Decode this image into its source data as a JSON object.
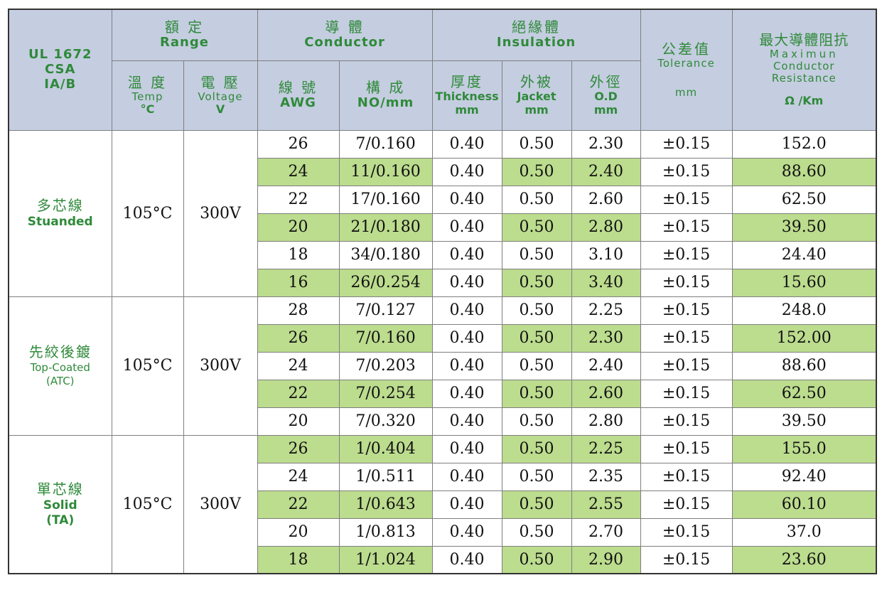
{
  "header": {
    "standard": [
      "UL 1672",
      "CSA",
      "IA/B"
    ],
    "range": {
      "cn": "額 定",
      "en": "Range"
    },
    "conductor": {
      "cn": "導 體",
      "en": "Conductor"
    },
    "insulation": {
      "cn": "絕緣體",
      "en": "Insulation"
    },
    "tolerance": {
      "cn": "公差值",
      "en": "Tolerance",
      "unit": "mm"
    },
    "resistance": {
      "cn": "最大導體阻抗",
      "en1": "Maximun",
      "en2": "Conductor",
      "en3": "Resistance",
      "unit": "Ω /Km"
    },
    "temp": {
      "cn": "溫 度",
      "en": "Temp",
      "unit": "°C"
    },
    "voltage": {
      "cn": "電 壓",
      "en": "Voltage",
      "unit": "V"
    },
    "awg": {
      "cn": "線 號",
      "en": "AWG"
    },
    "construction": {
      "cn": "構 成",
      "en": "NO/mm"
    },
    "thickness": {
      "cn": "厚度",
      "en": "Thickness",
      "unit": "mm"
    },
    "jacket": {
      "cn": "外被",
      "en": "Jacket",
      "unit": "mm"
    },
    "od": {
      "cn": "外徑",
      "en": "O.D",
      "unit": "mm"
    }
  },
  "groups": [
    {
      "cn": "多芯線",
      "en": "Stuanded",
      "en2": "",
      "temp": "105°C",
      "voltage": "300V",
      "rows": [
        {
          "awg": "26",
          "no": "7/0.160",
          "thick": "0.40",
          "jacket": "0.50",
          "od": "2.30",
          "tol": "±0.15",
          "res": "152.0",
          "green": false
        },
        {
          "awg": "24",
          "no": "11/0.160",
          "thick": "0.40",
          "jacket": "0.50",
          "od": "2.40",
          "tol": "±0.15",
          "res": "88.60",
          "green": true
        },
        {
          "awg": "22",
          "no": "17/0.160",
          "thick": "0.40",
          "jacket": "0.50",
          "od": "2.60",
          "tol": "±0.15",
          "res": "62.50",
          "green": false
        },
        {
          "awg": "20",
          "no": "21/0.180",
          "thick": "0.40",
          "jacket": "0.50",
          "od": "2.80",
          "tol": "±0.15",
          "res": "39.50",
          "green": true
        },
        {
          "awg": "18",
          "no": "34/0.180",
          "thick": "0.40",
          "jacket": "0.50",
          "od": "3.10",
          "tol": "±0.15",
          "res": "24.40",
          "green": false
        },
        {
          "awg": "16",
          "no": "26/0.254",
          "thick": "0.40",
          "jacket": "0.50",
          "od": "3.40",
          "tol": "±0.15",
          "res": "15.60",
          "green": true
        }
      ]
    },
    {
      "cn": "先絞後鍍",
      "en": "Top-Coated",
      "en2": "(ATC)",
      "temp": "105°C",
      "voltage": "300V",
      "rows": [
        {
          "awg": "28",
          "no": "7/0.127",
          "thick": "0.40",
          "jacket": "0.50",
          "od": "2.25",
          "tol": "±0.15",
          "res": "248.0",
          "green": false
        },
        {
          "awg": "26",
          "no": "7/0.160",
          "thick": "0.40",
          "jacket": "0.50",
          "od": "2.30",
          "tol": "±0.15",
          "res": "152.00",
          "green": true
        },
        {
          "awg": "24",
          "no": "7/0.203",
          "thick": "0.40",
          "jacket": "0.50",
          "od": "2.40",
          "tol": "±0.15",
          "res": "88.60",
          "green": false
        },
        {
          "awg": "22",
          "no": "7/0.254",
          "thick": "0.40",
          "jacket": "0.50",
          "od": "2.60",
          "tol": "±0.15",
          "res": "62.50",
          "green": true
        },
        {
          "awg": "20",
          "no": "7/0.320",
          "thick": "0.40",
          "jacket": "0.50",
          "od": "2.80",
          "tol": "±0.15",
          "res": "39.50",
          "green": false
        }
      ]
    },
    {
      "cn": "單芯線",
      "en": "Solid",
      "en2": "(TA)",
      "temp": "105°C",
      "voltage": "300V",
      "rows": [
        {
          "awg": "26",
          "no": "1/0.404",
          "thick": "0.40",
          "jacket": "0.50",
          "od": "2.25",
          "tol": "±0.15",
          "res": "155.0",
          "green": true
        },
        {
          "awg": "24",
          "no": "1/0.511",
          "thick": "0.40",
          "jacket": "0.50",
          "od": "2.35",
          "tol": "±0.15",
          "res": "92.40",
          "green": false
        },
        {
          "awg": "22",
          "no": "1/0.643",
          "thick": "0.40",
          "jacket": "0.50",
          "od": "2.55",
          "tol": "±0.15",
          "res": "60.10",
          "green": true
        },
        {
          "awg": "20",
          "no": "1/0.813",
          "thick": "0.40",
          "jacket": "0.50",
          "od": "2.70",
          "tol": "±0.15",
          "res": "37.0",
          "green": false
        },
        {
          "awg": "18",
          "no": "1/1.024",
          "thick": "0.40",
          "jacket": "0.50",
          "od": "2.90",
          "tol": "±0.15",
          "res": "23.60",
          "green": true
        }
      ]
    }
  ],
  "colors": {
    "header_bg": "#c5cde0",
    "header_text": "#2f8a3a",
    "highlight": "#bcdc8e"
  }
}
